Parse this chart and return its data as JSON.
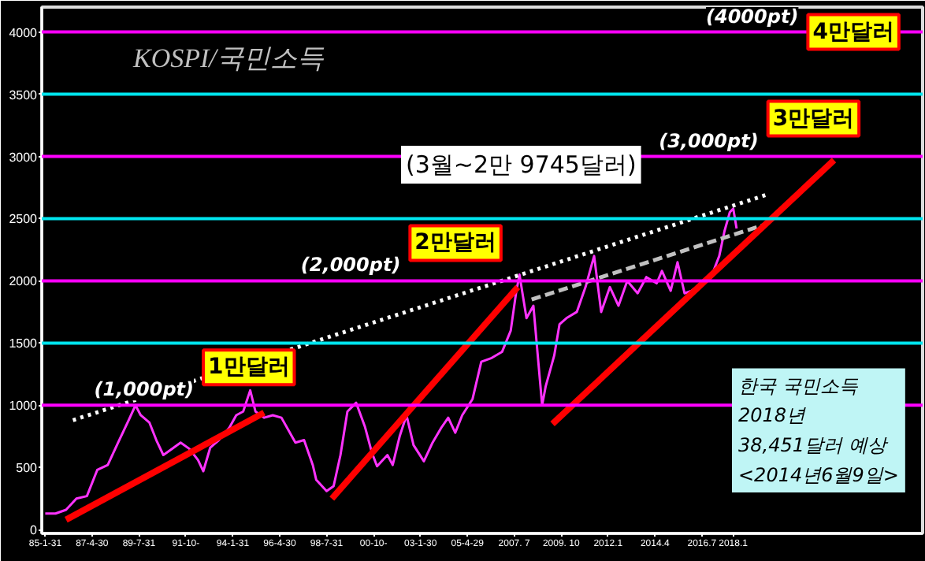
{
  "chart_data": {
    "type": "line",
    "title": "KOSPI/국민소득",
    "subtitle": "(3월~2만 9745달러)",
    "xlim": [
      "1984-11",
      "2027-02"
    ],
    "ylim": [
      -30,
      4200
    ],
    "xticks": [
      {
        "value": "1985-01",
        "label": "85-1-31"
      },
      {
        "value": "1987-04",
        "label": "87-4-30"
      },
      {
        "value": "1989-07",
        "label": "89-7-31"
      },
      {
        "value": "1991-10",
        "label": "91-10-"
      },
      {
        "value": "1994-01",
        "label": "94-1-31"
      },
      {
        "value": "1996-04",
        "label": "96-4-30"
      },
      {
        "value": "1998-07",
        "label": "98-7-31"
      },
      {
        "value": "2000-10",
        "label": "00-10-"
      },
      {
        "value": "2003-01",
        "label": "03-1-30"
      },
      {
        "value": "2005-04",
        "label": "05-4-29"
      },
      {
        "value": "2007-07",
        "label": "2007. 7"
      },
      {
        "value": "2009-10",
        "label": "2009. 10"
      },
      {
        "value": "2012-01",
        "label": "2012.1"
      },
      {
        "value": "2014-04",
        "label": "2014.4"
      },
      {
        "value": "2016-07",
        "label": "2016.7"
      },
      {
        "value": "2018-01",
        "label": "2018.1"
      }
    ],
    "yticks": [
      0,
      500,
      1000,
      1500,
      2000,
      2500,
      3000,
      3500,
      4000
    ],
    "grid": false,
    "series": [
      {
        "color": "#ff33ff",
        "line_style": "solid",
        "x": [
          "1985-01",
          "1985-07",
          "1986-01",
          "1986-07",
          "1987-01",
          "1987-07",
          "1988-01",
          "1988-07",
          "1989-01",
          "1989-05",
          "1989-08",
          "1990-01",
          "1990-05",
          "1990-09",
          "1991-01",
          "1991-07",
          "1991-12",
          "1992-05",
          "1992-08",
          "1992-12",
          "1993-05",
          "1993-11",
          "1994-03",
          "1994-07",
          "1994-11",
          "1995-02",
          "1995-07",
          "1995-12",
          "1996-05",
          "1996-09",
          "1997-01",
          "1997-06",
          "1997-11",
          "1998-01",
          "1998-07",
          "1998-11",
          "1999-03",
          "1999-07",
          "1999-12",
          "2000-05",
          "2000-09",
          "2000-12",
          "2001-06",
          "2001-09",
          "2002-01",
          "2002-05",
          "2002-09",
          "2003-03",
          "2003-08",
          "2004-01",
          "2004-05",
          "2004-09",
          "2005-01",
          "2005-07",
          "2005-12",
          "2006-06",
          "2006-12",
          "2007-05",
          "2007-08",
          "2007-10",
          "2008-02",
          "2008-06",
          "2008-11",
          "2009-01",
          "2009-06",
          "2009-09",
          "2010-01",
          "2010-07",
          "2010-12",
          "2011-05",
          "2011-09",
          "2012-02",
          "2012-07",
          "2012-12",
          "2013-06",
          "2013-11",
          "2014-05",
          "2014-08",
          "2015-01",
          "2015-05",
          "2015-09",
          "2016-01",
          "2016-07",
          "2016-12",
          "2017-05",
          "2017-08",
          "2017-11",
          "2018-01",
          "2018-03"
        ],
        "values": [
          130,
          130,
          160,
          250,
          270,
          480,
          520,
          700,
          880,
          1000,
          920,
          860,
          720,
          600,
          640,
          700,
          650,
          560,
          470,
          660,
          720,
          820,
          920,
          950,
          1120,
          950,
          900,
          920,
          900,
          800,
          700,
          720,
          520,
          400,
          310,
          350,
          600,
          950,
          1020,
          830,
          620,
          510,
          600,
          520,
          750,
          920,
          680,
          550,
          700,
          820,
          900,
          780,
          920,
          1050,
          1350,
          1380,
          1430,
          1600,
          1900,
          2050,
          1700,
          1800,
          1000,
          1150,
          1400,
          1650,
          1700,
          1750,
          1950,
          2200,
          1750,
          1950,
          1800,
          2000,
          1900,
          2030,
          1980,
          2080,
          1920,
          2150,
          1900,
          1920,
          1980,
          2020,
          2200,
          2400,
          2550,
          2580,
          2420
        ]
      },
      {
        "color": "#ffffff",
        "line_style": "dotted",
        "x": [
          "1986-05",
          "2019-10"
        ],
        "values": [
          880,
          2700
        ]
      },
      {
        "color": "#c0c0c0",
        "line_style": "dashed",
        "x": [
          "2008-05",
          "2019-07"
        ],
        "values": [
          1850,
          2450
        ]
      },
      {
        "color": "#ff0000",
        "line_style": "solid",
        "x": [
          "1986-01",
          "1995-07"
        ],
        "values": [
          80,
          940
        ]
      },
      {
        "color": "#ff0000",
        "line_style": "solid",
        "x": [
          "1998-10",
          "2007-09"
        ],
        "values": [
          250,
          1950
        ]
      },
      {
        "color": "#ff0000",
        "line_style": "solid",
        "x": [
          "2009-05",
          "2022-11"
        ],
        "values": [
          850,
          2970
        ]
      }
    ],
    "ref_lines": [
      {
        "axis": "y",
        "value": 4000,
        "label": "(4000pt)",
        "color": "#ff00ff"
      },
      {
        "axis": "y",
        "value": 3500,
        "color": "#00e5ee"
      },
      {
        "axis": "y",
        "value": 3000,
        "label": "(3,000pt)",
        "color": "#ff00ff"
      },
      {
        "axis": "y",
        "value": 2500,
        "color": "#00e5ee"
      },
      {
        "axis": "y",
        "value": 2000,
        "label": "(2,000pt)",
        "color": "#ff00ff"
      },
      {
        "axis": "y",
        "value": 1500,
        "color": "#00e5ee"
      },
      {
        "axis": "y",
        "value": 1000,
        "label": "(1,000pt)",
        "color": "#ff00ff"
      }
    ],
    "annotations": [
      {
        "text": "4만달러",
        "x": "2021-08",
        "y": 4000
      },
      {
        "text": "3만달러",
        "x": "2019-09",
        "y": 3000
      },
      {
        "text": "2만달러",
        "x": "2002-07",
        "y": 2000
      },
      {
        "text": "1만달러",
        "x": "1992-08",
        "y": 1000
      },
      "한국 국민소득",
      "2018년",
      "38,451달러 예상",
      "<2014년6월9일>"
    ]
  }
}
